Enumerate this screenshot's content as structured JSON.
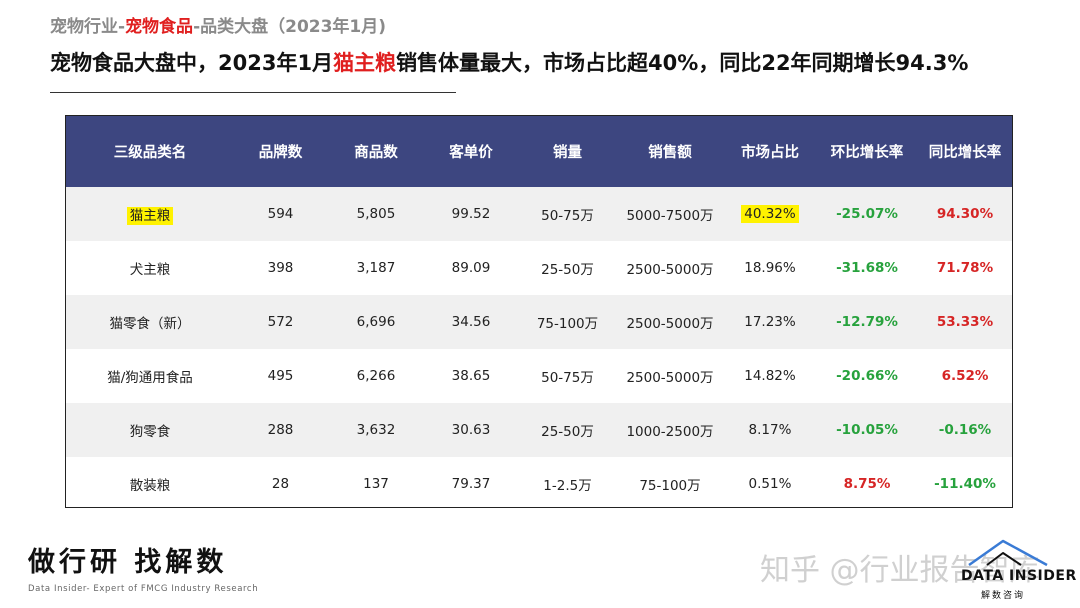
{
  "breadcrumb": {
    "part1": "宠物行业-",
    "part2": "宠物食品",
    "part3": "-品类大盘（2023年1月)"
  },
  "headline": {
    "part1": "宠物食品大盘中，2023年1月",
    "part2": "猫主粮",
    "part3": "销售体量最大，市场占比超40%，同比22年同期增长94.3%"
  },
  "table": {
    "headers": [
      "三级品类名",
      "品牌数",
      "商品数",
      "客单价",
      "销量",
      "销售额",
      "市场占比",
      "环比增长率",
      "同比增长率"
    ],
    "rows": [
      {
        "category": "猫主粮",
        "brands": "594",
        "products": "5,805",
        "avg_price": "99.52",
        "volume": "50-75万",
        "sales": "5000-7500万",
        "share": "40.32%",
        "mom": "-25.07%",
        "yoy": "94.30%"
      },
      {
        "category": "犬主粮",
        "brands": "398",
        "products": "3,187",
        "avg_price": "89.09",
        "volume": "25-50万",
        "sales": "2500-5000万",
        "share": "18.96%",
        "mom": "-31.68%",
        "yoy": "71.78%"
      },
      {
        "category": "猫零食（新）",
        "brands": "572",
        "products": "6,696",
        "avg_price": "34.56",
        "volume": "75-100万",
        "sales": "2500-5000万",
        "share": "17.23%",
        "mom": "-12.79%",
        "yoy": "53.33%"
      },
      {
        "category": "猫/狗通用食品",
        "brands": "495",
        "products": "6,266",
        "avg_price": "38.65",
        "volume": "50-75万",
        "sales": "2500-5000万",
        "share": "14.82%",
        "mom": "-20.66%",
        "yoy": "6.52%"
      },
      {
        "category": "狗零食",
        "brands": "288",
        "products": "3,632",
        "avg_price": "30.63",
        "volume": "25-50万",
        "sales": "1000-2500万",
        "share": "8.17%",
        "mom": "-10.05%",
        "yoy": "-0.16%"
      },
      {
        "category": "散装粮",
        "brands": "28",
        "products": "137",
        "avg_price": "79.37",
        "volume": "1-2.5万",
        "sales": "75-100万",
        "share": "0.51%",
        "mom": "8.75%",
        "yoy": "-11.40%"
      }
    ]
  },
  "footer": {
    "slogan": "做行研 找解数",
    "tagline": "Data Insider- Expert of FMCG Industry Research",
    "watermark": "知乎 @行业报告智库",
    "logo_name": "DATA INSIDER",
    "logo_sub": "解数咨询"
  },
  "colors": {
    "header_bg": "#3d4680",
    "highlight": "#fff200",
    "up": "#27a23d",
    "down": "#d62525",
    "accent_red": "#e01f1f"
  }
}
